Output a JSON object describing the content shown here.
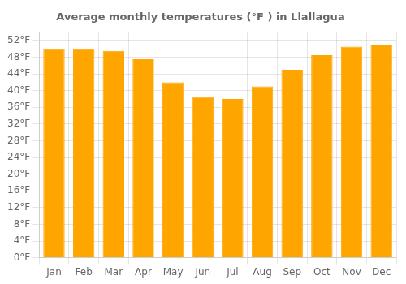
{
  "chart_data": {
    "type": "bar",
    "title": "Average monthly temperatures (°F ) in Llallagua",
    "categories": [
      "Jan",
      "Feb",
      "Mar",
      "Apr",
      "May",
      "Jun",
      "Jul",
      "Aug",
      "Sep",
      "Oct",
      "Nov",
      "Dec"
    ],
    "values": [
      50.0,
      50.0,
      49.5,
      47.5,
      42.0,
      38.5,
      38.0,
      41.0,
      45.0,
      48.5,
      50.5,
      51.0
    ],
    "color": "#FFA500",
    "ylim": [
      0,
      54
    ],
    "yticks": [
      {
        "value": 0,
        "label": "0°F"
      },
      {
        "value": 4,
        "label": "4°F"
      },
      {
        "value": 8,
        "label": "8°F"
      },
      {
        "value": 12,
        "label": "12°F"
      },
      {
        "value": 16,
        "label": "16°F"
      },
      {
        "value": 20,
        "label": "20°F"
      },
      {
        "value": 24,
        "label": "24°F"
      },
      {
        "value": 28,
        "label": "28°F"
      },
      {
        "value": 32,
        "label": "32°F"
      },
      {
        "value": 36,
        "label": "36°F"
      },
      {
        "value": 40,
        "label": "40°F"
      },
      {
        "value": 44,
        "label": "44°F"
      },
      {
        "value": 48,
        "label": "48°F"
      },
      {
        "value": 52,
        "label": "52°F"
      }
    ],
    "grid": true
  }
}
